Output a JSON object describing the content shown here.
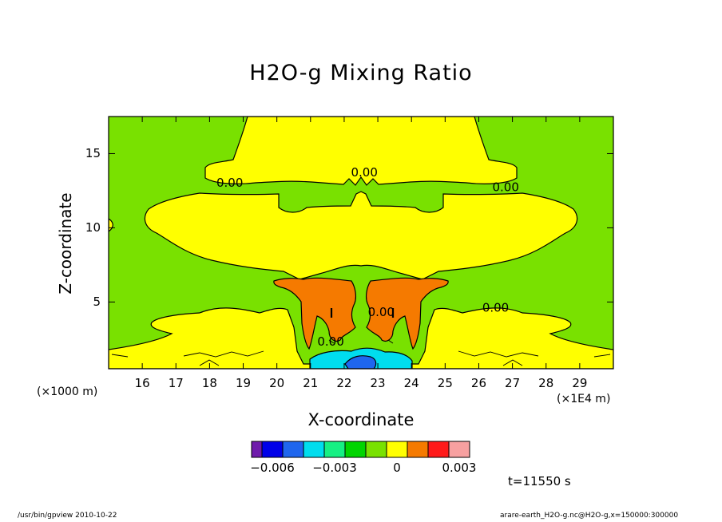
{
  "chart_data": {
    "type": "heatmap",
    "title": "H2O-g Mixing Ratio",
    "xlabel": "X-coordinate",
    "ylabel": "Z-coordinate",
    "x_unit_note": "(×1000 m)",
    "x_scale_note": "(×1E4 m)",
    "x_ticks": [
      "16",
      "17",
      "18",
      "19",
      "20",
      "21",
      "22",
      "23",
      "24",
      "25",
      "26",
      "27",
      "28",
      "29"
    ],
    "y_ticks": [
      "5",
      "10",
      "15"
    ],
    "xlim": [
      15.0,
      30.0
    ],
    "ylim": [
      0.5,
      17.5
    ],
    "contour_labels": [
      {
        "text": "0.00",
        "x": 18.6,
        "y": 13.0
      },
      {
        "text": "0.00",
        "x": 22.6,
        "y": 13.7
      },
      {
        "text": "0.00",
        "x": 26.8,
        "y": 12.7
      },
      {
        "text": "0.00",
        "x": 23.1,
        "y": 4.3
      },
      {
        "text": "0.00",
        "x": 21.6,
        "y": 2.3
      },
      {
        "text": "0.00",
        "x": 26.5,
        "y": 4.6
      }
    ],
    "colorbar": {
      "colors": [
        "#6f1bab",
        "#0000e8",
        "#1f66ee",
        "#00ddee",
        "#16f083",
        "#00d500",
        "#79e100",
        "#ffff00",
        "#f57a00",
        "#ff1919",
        "#f7a0a0"
      ],
      "tick_labels": [
        {
          "text": "−0.006",
          "at": 0.5
        },
        {
          "text": "−0.003",
          "at": 3.5
        },
        {
          "text": "0",
          "at": 6.5
        },
        {
          "text": "0.003",
          "at": 9.5
        }
      ]
    },
    "background_color": "#79e100",
    "positive_fill_color": "#ffff00",
    "core_fill_color": "#f57a00",
    "negative_fill_color": "#00ddee"
  },
  "annotations": {
    "timestamp": "t=11550 s",
    "footer_left": "/usr/bin/gpview   2010-10-22",
    "footer_right": "arare-earth_H2O-g.nc@H2O-g,x=150000:300000"
  }
}
